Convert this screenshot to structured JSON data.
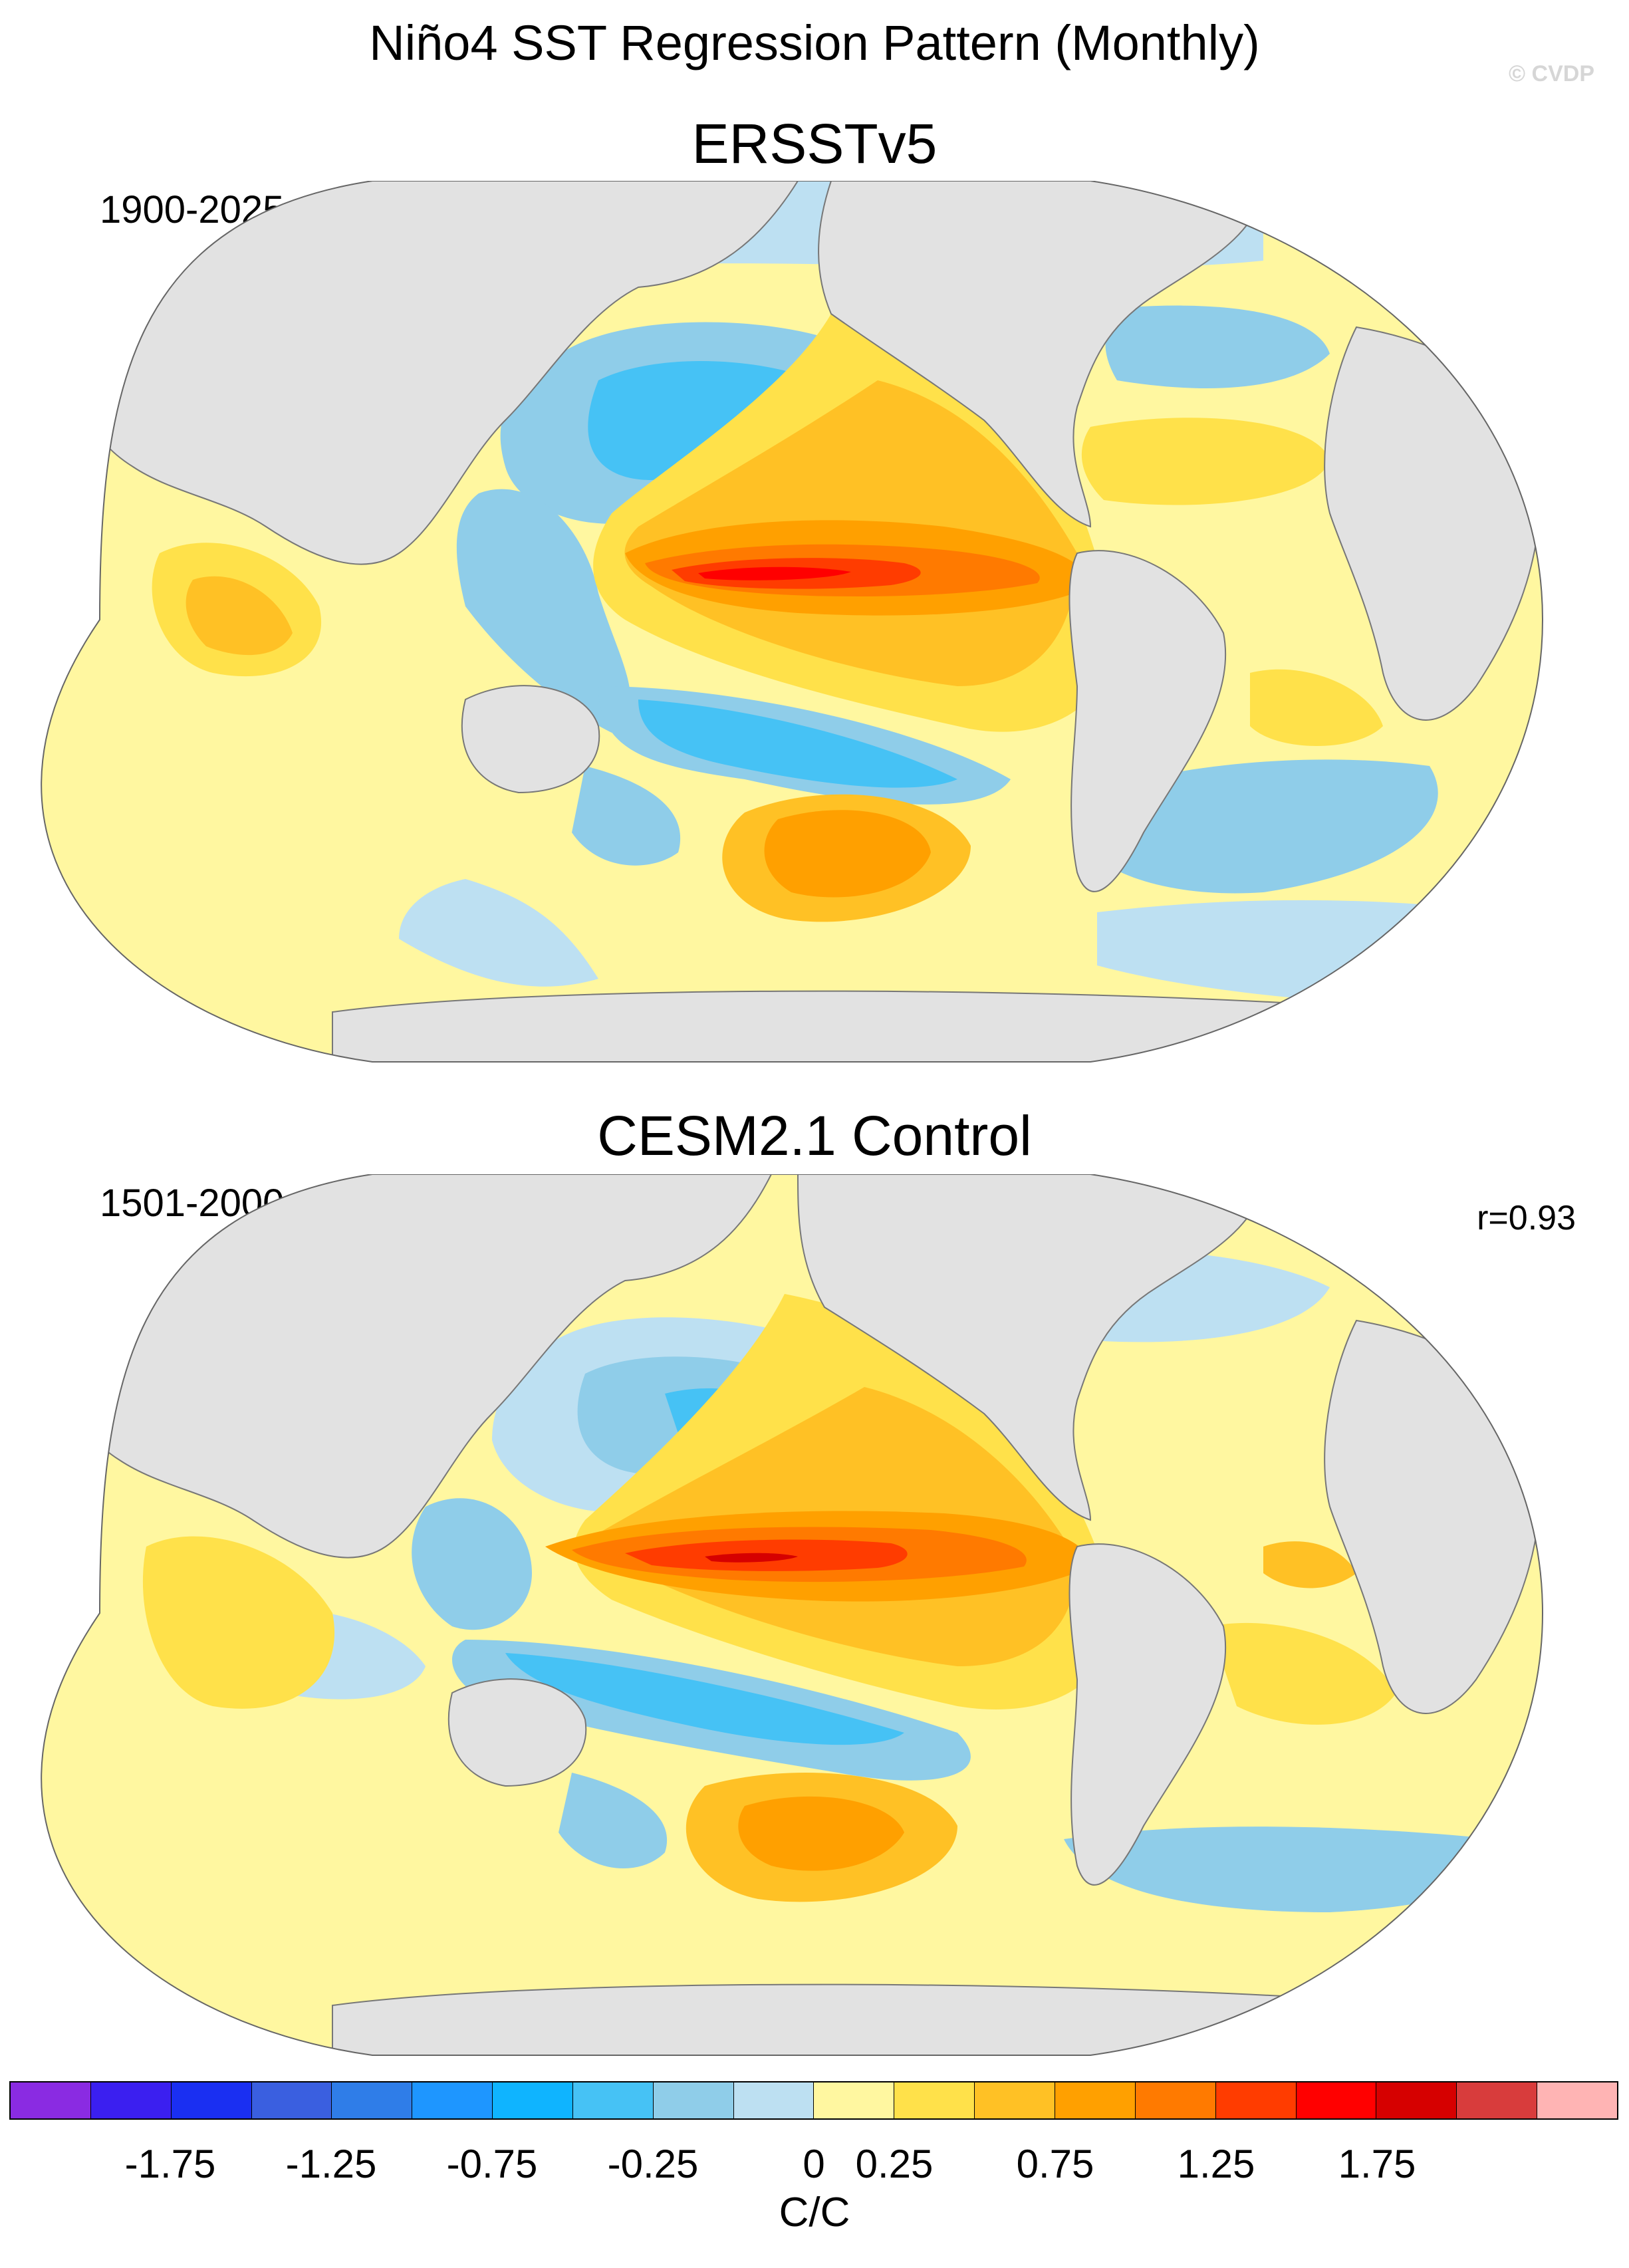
{
  "title": "Niño4 SST Regression Pattern (Monthly)",
  "watermark": "© CVDP",
  "panels": [
    {
      "title": "ERSSTv5",
      "period": "1900-2025",
      "correlation": ""
    },
    {
      "title": "CESM2.1 Control",
      "period": "1501-2000",
      "correlation": "r=0.93"
    }
  ],
  "colorbar": {
    "units": "C/C",
    "colors": [
      "#8a2be2",
      "#3b1ff0",
      "#1a2ff2",
      "#3a5fe0",
      "#2f7de8",
      "#1e96ff",
      "#0fb4ff",
      "#46c2f5",
      "#8fcde9",
      "#bde0f2",
      "#fff7a0",
      "#ffe14a",
      "#ffc125",
      "#ffa000",
      "#ff7a00",
      "#ff3c00",
      "#ff0000",
      "#d60000",
      "#d83c3c",
      "#ffb4b4"
    ],
    "tick_labels": [
      "-1.75",
      "-1.25",
      "-0.75",
      "-0.25",
      "0",
      "0.25",
      "0.75",
      "1.25",
      "1.75"
    ]
  },
  "colors": {
    "land": "#e2e2e2",
    "ocean_base": "#fff7a0"
  }
}
